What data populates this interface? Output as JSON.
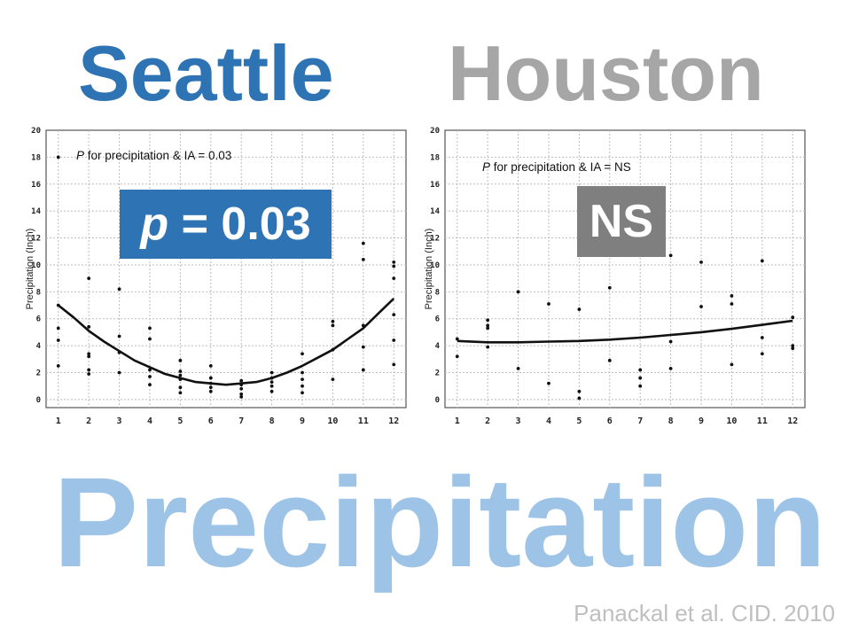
{
  "colors": {
    "seattle": "#2e74b5",
    "houston": "#a6a6a6",
    "seattle_badge": "#2e74b5",
    "houston_badge": "#7f7f7f",
    "precipitation": "#9dc3e6",
    "citation": "#bfbfbf"
  },
  "titles": {
    "seattle": "Seattle",
    "houston": "Houston"
  },
  "badges": {
    "seattle": {
      "p": "p",
      "rest": " = 0.03"
    },
    "houston": "NS"
  },
  "big_title": "Precipitation",
  "citation": "Panackal et al. CID. 2010",
  "chart_data": [
    {
      "type": "scatter",
      "id": "seattle",
      "annotation": {
        "p": "P",
        "rest": " for precipitation & IA = 0.03"
      },
      "ylabel": "Precipitation (Inch)",
      "xlabel": "",
      "xlim": [
        0.6,
        12.4
      ],
      "ylim": [
        -0.6,
        20
      ],
      "x_ticks": [
        1,
        2,
        3,
        4,
        5,
        6,
        7,
        8,
        9,
        10,
        11,
        12
      ],
      "y_ticks": [
        0,
        2,
        4,
        6,
        8,
        10,
        12,
        14,
        16,
        18,
        20
      ],
      "grid": true,
      "points": [
        [
          1,
          18
        ],
        [
          1,
          7
        ],
        [
          1,
          5.3
        ],
        [
          1,
          4.4
        ],
        [
          1,
          2.5
        ],
        [
          2,
          9
        ],
        [
          2,
          5.4
        ],
        [
          2,
          3.4
        ],
        [
          2,
          3.2
        ],
        [
          2,
          2.2
        ],
        [
          2,
          1.9
        ],
        [
          3,
          8.2
        ],
        [
          3,
          4.7
        ],
        [
          3,
          3.5
        ],
        [
          3,
          2
        ],
        [
          4,
          5.3
        ],
        [
          4,
          4.5
        ],
        [
          4,
          2.2
        ],
        [
          4,
          1.7
        ],
        [
          4,
          1.1
        ],
        [
          5,
          2.9
        ],
        [
          5,
          2.1
        ],
        [
          5,
          1.8
        ],
        [
          5,
          1.5
        ],
        [
          5,
          0.9
        ],
        [
          5,
          0.5
        ],
        [
          6,
          2.5
        ],
        [
          6,
          1.6
        ],
        [
          6,
          1.2
        ],
        [
          6,
          0.9
        ],
        [
          6,
          0.6
        ],
        [
          7,
          1.4
        ],
        [
          7,
          1.1
        ],
        [
          7,
          0.8
        ],
        [
          7,
          0.4
        ],
        [
          7,
          0.2
        ],
        [
          8,
          2
        ],
        [
          8,
          1.6
        ],
        [
          8,
          1.3
        ],
        [
          8,
          1
        ],
        [
          8,
          0.6
        ],
        [
          9,
          3.4
        ],
        [
          9,
          2
        ],
        [
          9,
          1.5
        ],
        [
          9,
          1
        ],
        [
          9,
          0.5
        ],
        [
          10,
          5.8
        ],
        [
          10,
          5.5
        ],
        [
          10,
          3.7
        ],
        [
          10,
          1.5
        ],
        [
          11,
          11.6
        ],
        [
          11,
          10.4
        ],
        [
          11,
          5.5
        ],
        [
          11,
          3.9
        ],
        [
          11,
          2.2
        ],
        [
          12,
          10.2
        ],
        [
          12,
          9.9
        ],
        [
          12,
          9
        ],
        [
          12,
          6.3
        ],
        [
          12,
          4.4
        ],
        [
          12,
          2.6
        ]
      ],
      "fit_line": {
        "x": [
          1,
          1.5,
          2,
          2.5,
          3,
          3.5,
          4,
          4.5,
          5,
          5.5,
          6,
          6.5,
          7,
          7.5,
          8,
          8.5,
          9,
          9.5,
          10,
          10.5,
          11,
          11.5,
          12
        ],
        "y": [
          7,
          6.1,
          5.1,
          4.3,
          3.6,
          2.9,
          2.4,
          1.9,
          1.6,
          1.3,
          1.2,
          1.1,
          1.2,
          1.3,
          1.6,
          2,
          2.5,
          3.1,
          3.7,
          4.5,
          5.3,
          6.4,
          7.5
        ]
      }
    },
    {
      "type": "scatter",
      "id": "houston",
      "annotation": {
        "p": "P",
        "rest": " for precipitation & IA = NS"
      },
      "ylabel": "Precipitation (Inch)",
      "xlabel": "",
      "xlim": [
        0.6,
        12.4
      ],
      "ylim": [
        -0.6,
        20
      ],
      "x_ticks": [
        1,
        2,
        3,
        4,
        5,
        6,
        7,
        8,
        9,
        10,
        11,
        12
      ],
      "y_ticks": [
        0,
        2,
        4,
        6,
        8,
        10,
        12,
        14,
        16,
        18,
        20
      ],
      "grid": true,
      "points": [
        [
          1,
          4.5
        ],
        [
          1,
          3.2
        ],
        [
          2,
          5.9
        ],
        [
          2,
          5.5
        ],
        [
          2,
          5.3
        ],
        [
          2,
          3.9
        ],
        [
          3,
          8
        ],
        [
          3,
          2.3
        ],
        [
          4,
          7.1
        ],
        [
          4,
          1.2
        ],
        [
          5,
          6.7
        ],
        [
          5,
          0.6
        ],
        [
          5,
          0.1
        ],
        [
          6,
          8.3
        ],
        [
          6,
          2.9
        ],
        [
          7,
          2.2
        ],
        [
          7,
          1.6
        ],
        [
          7,
          1
        ],
        [
          8,
          10.7
        ],
        [
          8,
          4.3
        ],
        [
          8,
          2.3
        ],
        [
          9,
          10.2
        ],
        [
          9,
          6.9
        ],
        [
          10,
          7.7
        ],
        [
          10,
          7.1
        ],
        [
          10,
          2.6
        ],
        [
          11,
          10.3
        ],
        [
          11,
          4.6
        ],
        [
          11,
          3.4
        ],
        [
          12,
          6.1
        ],
        [
          12,
          4
        ],
        [
          12,
          3.8
        ]
      ],
      "fit_line": {
        "x": [
          1,
          2,
          3,
          4,
          5,
          6,
          7,
          8,
          9,
          10,
          11,
          12
        ],
        "y": [
          4.35,
          4.25,
          4.25,
          4.3,
          4.35,
          4.45,
          4.6,
          4.8,
          5.0,
          5.25,
          5.55,
          5.85
        ]
      }
    }
  ]
}
